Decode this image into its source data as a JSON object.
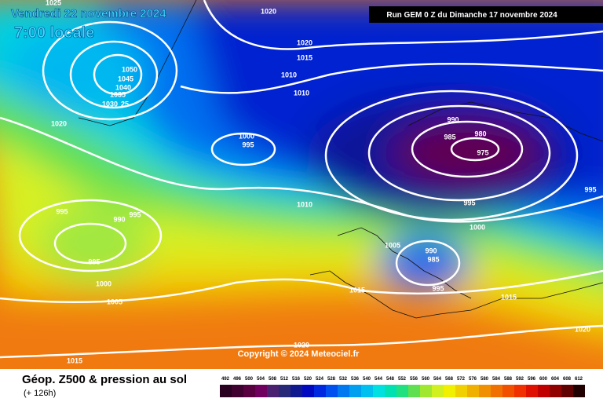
{
  "header": {
    "date": "Vendredi 22 novembre 2024",
    "time": "7:00 locale",
    "run": "Run GEM 0 Z du Dimanche 17 novembre 2024"
  },
  "isobar_labels": [
    "1025",
    "1020",
    "1020",
    "1015",
    "1010",
    "1010",
    "1050",
    "1045",
    "1040",
    "1035",
    "1030",
    "25",
    "1020",
    "990",
    "980",
    "985",
    "975",
    "1000",
    "995",
    "995",
    "995",
    "990",
    "995",
    "1000",
    "1005",
    "1010",
    "995",
    "995",
    "1000",
    "1005",
    "990",
    "985",
    "995",
    "1015",
    "1015",
    "1020",
    "1020",
    "1015"
  ],
  "copyright": "Copyright © 2024 Meteociel.fr",
  "footer": {
    "title": "Géop. Z500 & pression au sol",
    "subtitle": "(+ 126h)"
  },
  "scale": [
    {
      "label": "492",
      "color": "#2a0020"
    },
    {
      "label": "496",
      "color": "#400030"
    },
    {
      "label": "500",
      "color": "#580040"
    },
    {
      "label": "504",
      "color": "#700060"
    },
    {
      "label": "508",
      "color": "#4a2070"
    },
    {
      "label": "512",
      "color": "#282878"
    },
    {
      "label": "516",
      "color": "#101890"
    },
    {
      "label": "520",
      "color": "#0008c0"
    },
    {
      "label": "524",
      "color": "#0028e0"
    },
    {
      "label": "528",
      "color": "#0050f0"
    },
    {
      "label": "532",
      "color": "#0078f0"
    },
    {
      "label": "536",
      "color": "#00a0f0"
    },
    {
      "label": "540",
      "color": "#00c0f0"
    },
    {
      "label": "544",
      "color": "#00e0e0"
    },
    {
      "label": "548",
      "color": "#00e0b0"
    },
    {
      "label": "552",
      "color": "#20e080"
    },
    {
      "label": "556",
      "color": "#60e050"
    },
    {
      "label": "560",
      "color": "#a0e830"
    },
    {
      "label": "564",
      "color": "#d0f020"
    },
    {
      "label": "568",
      "color": "#f0f000"
    },
    {
      "label": "572",
      "color": "#f0d000"
    },
    {
      "label": "576",
      "color": "#f0b000"
    },
    {
      "label": "580",
      "color": "#f09000"
    },
    {
      "label": "584",
      "color": "#f07000"
    },
    {
      "label": "588",
      "color": "#f05000"
    },
    {
      "label": "592",
      "color": "#f03000"
    },
    {
      "label": "596",
      "color": "#e01000"
    },
    {
      "label": "600",
      "color": "#c00000"
    },
    {
      "label": "604",
      "color": "#900000"
    },
    {
      "label": "608",
      "color": "#600000"
    },
    {
      "label": "612",
      "color": "#200000"
    }
  ]
}
